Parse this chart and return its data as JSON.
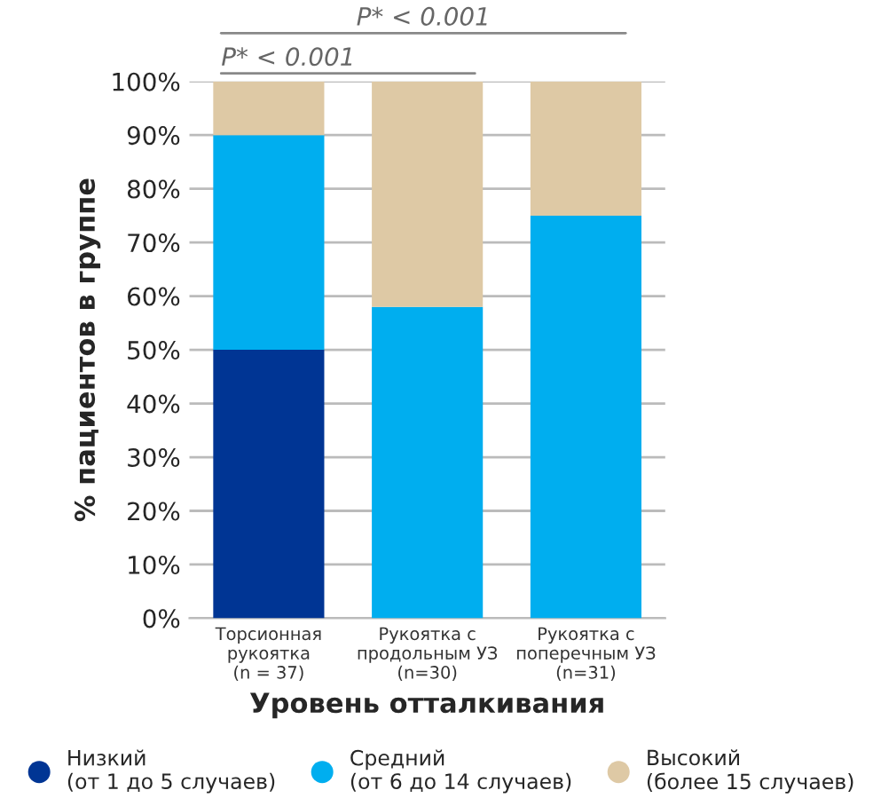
{
  "chart_data": {
    "type": "bar",
    "stacked": true,
    "categories": [
      "Торсионная\nрукоятка\n(n = 37)",
      "Рукоятка с\nпродольным УЗ\n(n=30)",
      "Рукоятка с\nпоперечным УЗ\n(n=31)"
    ],
    "series": [
      {
        "name": "Низкий\n(от 1 до 5 случаев)",
        "color": "#003594",
        "values": [
          50,
          0,
          0
        ]
      },
      {
        "name": "Средний\n(от 6 до 14 случаев)",
        "color": "#00aeef",
        "values": [
          40,
          58,
          75
        ]
      },
      {
        "name": "Высокий\n(более 15 случаев)",
        "color": "#dec9a5",
        "values": [
          10,
          42,
          25
        ]
      }
    ],
    "xlabel": "Уровень отталкивания",
    "ylabel": "% пациентов в группе",
    "ylim": [
      0,
      100
    ],
    "yticks": [
      {
        "value": 0,
        "label": "0%"
      },
      {
        "value": 10,
        "label": "10%"
      },
      {
        "value": 20,
        "label": "20%"
      },
      {
        "value": 30,
        "label": "30%"
      },
      {
        "value": 40,
        "label": "40%"
      },
      {
        "value": 50,
        "label": "50%"
      },
      {
        "value": 60,
        "label": "60%"
      },
      {
        "value": 70,
        "label": "70%"
      },
      {
        "value": 80,
        "label": "80%"
      },
      {
        "value": 90,
        "label": "90%"
      },
      {
        "value": 100,
        "label": "100%"
      }
    ],
    "grid": "y",
    "legend": "bottom",
    "marker": "circle",
    "annotations": [
      "P* < 0.001",
      "P* < 0.001"
    ]
  }
}
